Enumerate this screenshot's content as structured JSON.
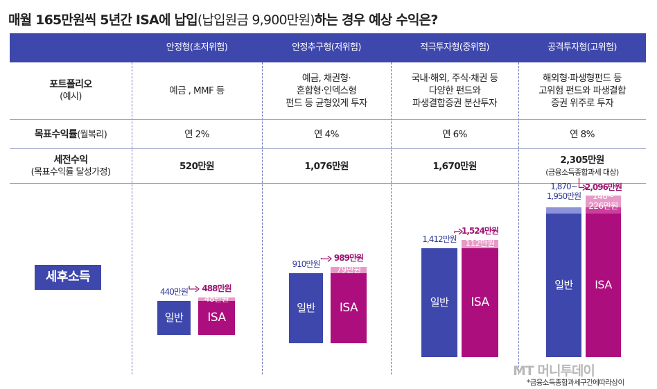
{
  "title": {
    "part1": "매월 165만원씩 5년간 ISA에 납입",
    "part2": "(납입원금 9,900만원)",
    "part3": "하는 경우 예상 수익은?"
  },
  "columns": [
    "안정형(초저위험)",
    "안정추구형(저위험)",
    "적극투자형(중위험)",
    "공격투자형(고위험)"
  ],
  "rows": {
    "portfolio": {
      "label": "포트폴리오",
      "sub": "(예시)",
      "values": [
        [
          "예금 , MMF 등"
        ],
        [
          "예금, 채권형·",
          "혼합형·인덱스형",
          "펀드 등 균형있게 투자"
        ],
        [
          "국내·해외, 주식·채권 등",
          "다양한 펀드와",
          "파생결합증권 분산투자"
        ],
        [
          "해외형·파생형펀드 등",
          "고위험 펀드와 파생결합",
          "증권 위주로 투자"
        ]
      ]
    },
    "target": {
      "label": "목표수익률",
      "sub": "(월복리)",
      "values": [
        "연 2%",
        "연 4%",
        "연 6%",
        "연 8%"
      ]
    },
    "pretax": {
      "label": "세전수익",
      "sub": "(목표수익률 달성가정)",
      "values": [
        "520만원",
        "1,076만원",
        "1,670만원",
        "2,305만원"
      ],
      "note4": "(금융소득종합과세 대상)"
    }
  },
  "after_tax_label": "세후소득",
  "chart_data": {
    "type": "bar",
    "title": "세후소득",
    "categories": [
      "안정형(초저위험)",
      "안정추구형(저위험)",
      "적극투자형(중위험)",
      "공격투자형(고위험)"
    ],
    "series": [
      {
        "name": "일반",
        "values": [
          440,
          910,
          1412,
          1950
        ],
        "range_low": [
          null,
          null,
          null,
          1870
        ]
      },
      {
        "name": "ISA",
        "values": [
          488,
          989,
          1524,
          2096
        ],
        "extra": [
          48,
          79,
          112,
          146
        ],
        "extra_high": [
          null,
          null,
          null,
          226
        ]
      }
    ],
    "labels": {
      "normal": [
        "440만원",
        "910만원",
        "1,412만원",
        "1,870~|1,950만원"
      ],
      "isa": [
        "488만원",
        "989만원",
        "1,524만원",
        "2,096만원"
      ],
      "extra": [
        "48만원",
        "79만원",
        "112만원",
        "146~|226만원"
      ]
    },
    "ylim": [
      0,
      2100
    ],
    "colors": {
      "normal": "#3e47ac",
      "normal_range": "#8c93d6",
      "isa": "#ad0e7d",
      "isa_range": "#cc3f9c",
      "extra": "#e79ac7"
    }
  },
  "footnote": "*금융소득종합과세구간에따라상이",
  "watermark": "MT 머니투데이"
}
